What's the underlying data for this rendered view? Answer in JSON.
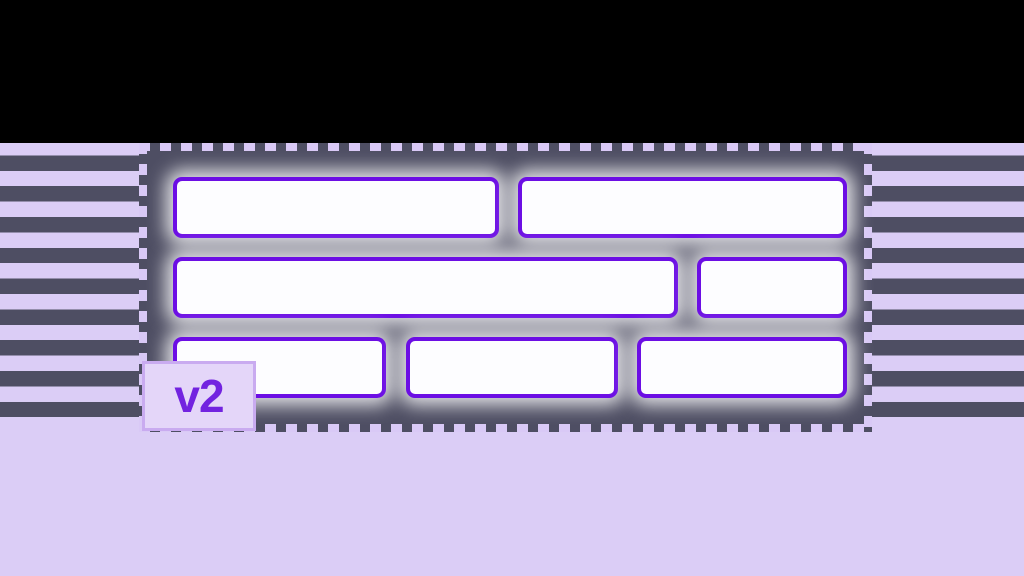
{
  "badge": {
    "label": "v2"
  },
  "skeleton": {
    "rows": [
      {
        "blocks": [
          326,
          329
        ]
      },
      {
        "blocks": [
          505,
          150
        ]
      },
      {
        "blocks": [
          213,
          212,
          210
        ]
      }
    ]
  },
  "colors": {
    "top_band": "#000000",
    "background_lavender": "#dbcdf6",
    "stripe_dark": "#4e4e63",
    "panel_fill": "#4e4e63",
    "panel_dash": "#d9c9f6",
    "block_fill": "#fdfdff",
    "block_border": "#6c0ee4",
    "badge_fill": "#e4d6f9",
    "badge_border": "#c9abf0",
    "badge_text": "#7223e0"
  }
}
